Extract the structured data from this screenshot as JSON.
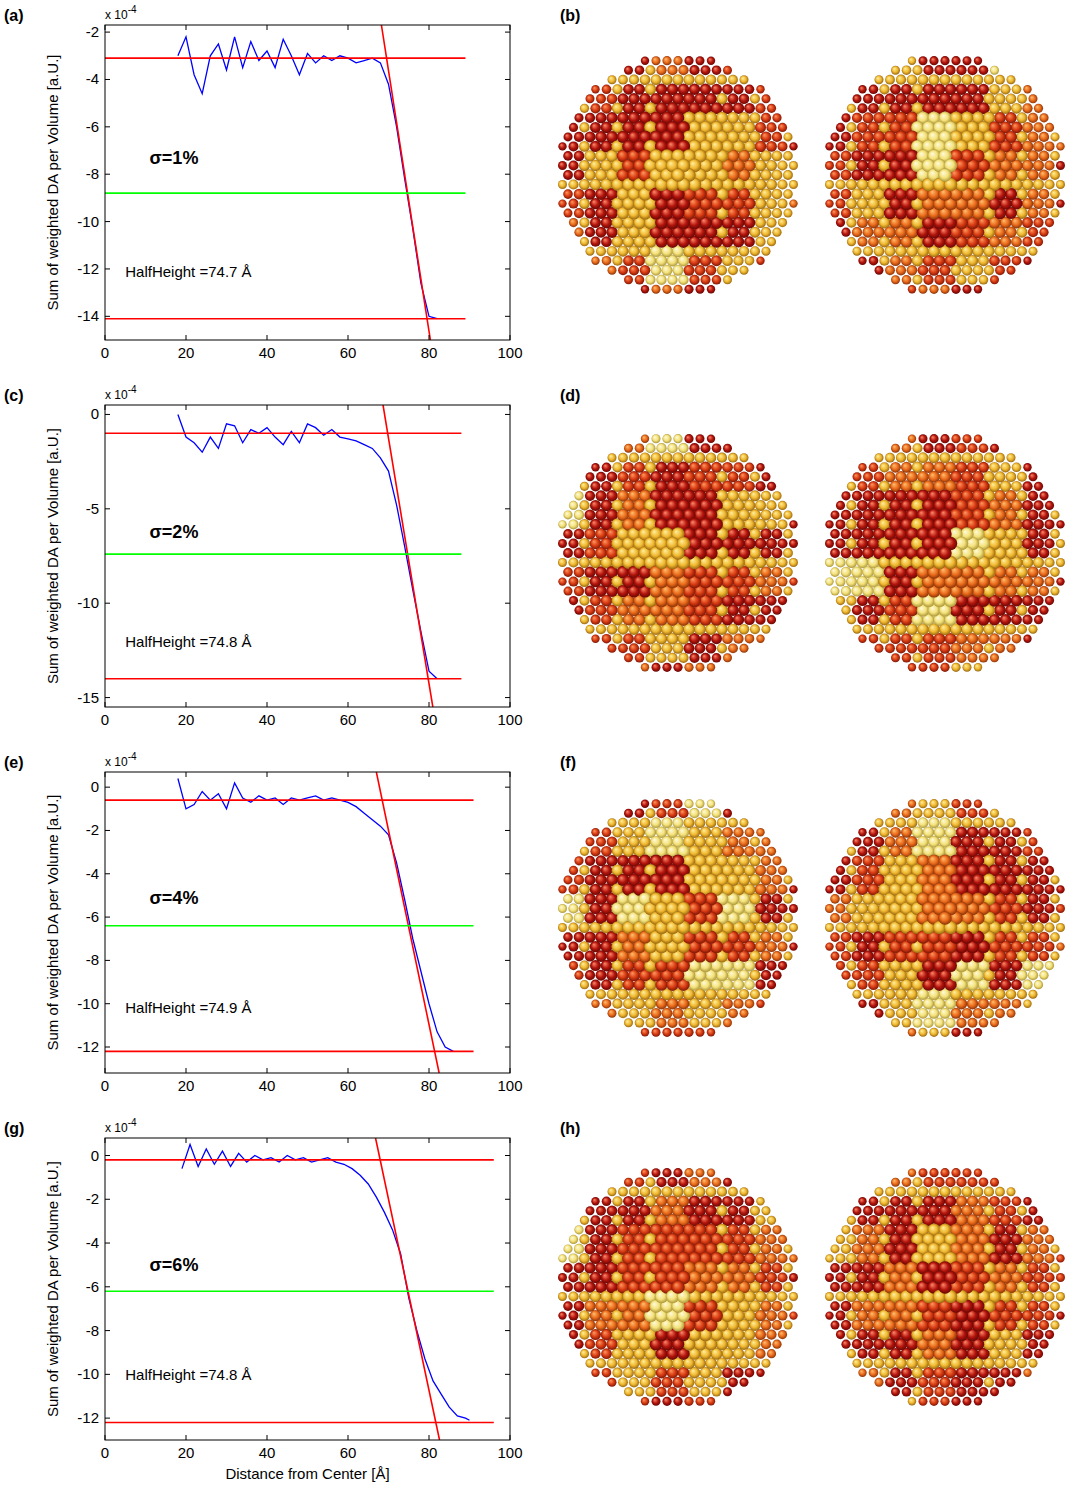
{
  "chart_data": [
    {
      "type": "line",
      "panel": "(a)",
      "annotation": "σ=1%",
      "half_height": "HalfHeight =74.7 Å",
      "y_label": "Sum of weighted DA per Volume [a.U.]",
      "y_multiplier": "x 10",
      "y_multiplier_exponent": "-4",
      "xlim": [
        0,
        100
      ],
      "xticks": [
        0,
        20,
        40,
        60,
        80,
        100
      ],
      "ylim": [
        -15,
        -1.7
      ],
      "yticks": [
        -2,
        -4,
        -6,
        -8,
        -10,
        -12,
        -14
      ],
      "grid": false,
      "series": [
        {
          "color": "#0000ff",
          "x": [
            18,
            20,
            22,
            24,
            26,
            28,
            30,
            32,
            34,
            36,
            38,
            40,
            42,
            44,
            46,
            48,
            50,
            52,
            54,
            56,
            58,
            60,
            62,
            64,
            66,
            68,
            70,
            72,
            74,
            76,
            78,
            80,
            82
          ],
          "values": [
            -3.0,
            -2.2,
            -3.8,
            -4.6,
            -3.0,
            -2.5,
            -3.6,
            -2.2,
            -3.5,
            -2.4,
            -3.2,
            -2.8,
            -3.5,
            -2.3,
            -3.0,
            -3.8,
            -2.9,
            -3.3,
            -3.0,
            -3.2,
            -3.0,
            -3.1,
            -3.3,
            -3.2,
            -3.1,
            -3.3,
            -4.2,
            -6.0,
            -8.2,
            -10.3,
            -12.6,
            -14.0,
            -14.1
          ]
        },
        {
          "color": "#ff0000",
          "x": [
            0,
            89
          ],
          "values": [
            -3.1,
            -3.1
          ]
        },
        {
          "color": "#ff0000",
          "x": [
            0,
            89
          ],
          "values": [
            -14.1,
            -14.1
          ]
        },
        {
          "color": "#ff0000",
          "x": [
            68.25,
            80.34
          ],
          "values": [
            -1.7,
            -15
          ]
        },
        {
          "color": "#00ff00",
          "x": [
            0,
            89
          ],
          "values": [
            -8.8,
            -8.8
          ]
        }
      ]
    },
    {
      "type": "line",
      "panel": "(c)",
      "annotation": "σ=2%",
      "half_height": "HalfHeight =74.8 Å",
      "y_label": "Sum of weighted DA per Volume [a.U.]",
      "y_multiplier": "x 10",
      "y_multiplier_exponent": "-4",
      "xlim": [
        0,
        100
      ],
      "xticks": [
        0,
        20,
        40,
        60,
        80,
        100
      ],
      "ylim": [
        -15.5,
        0.5
      ],
      "yticks": [
        0,
        -5,
        -10,
        -15
      ],
      "grid": false,
      "series": [
        {
          "color": "#0000ff",
          "x": [
            18,
            20,
            22,
            24,
            26,
            28,
            30,
            32,
            34,
            36,
            38,
            40,
            42,
            44,
            46,
            48,
            50,
            52,
            54,
            56,
            58,
            60,
            62,
            64,
            66,
            68,
            70,
            72,
            74,
            76,
            78,
            80,
            82
          ],
          "values": [
            0.0,
            -1.2,
            -1.5,
            -2.0,
            -1.2,
            -1.8,
            -0.5,
            -0.6,
            -1.5,
            -0.8,
            -1.0,
            -0.7,
            -1.2,
            -1.6,
            -0.9,
            -1.5,
            -0.5,
            -0.7,
            -1.1,
            -0.8,
            -1.2,
            -1.3,
            -1.4,
            -1.6,
            -1.8,
            -2.3,
            -3.0,
            -4.8,
            -7.0,
            -9.3,
            -11.5,
            -13.6,
            -14.0
          ]
        },
        {
          "color": "#ff0000",
          "x": [
            0,
            88
          ],
          "values": [
            -1.0,
            -1.0
          ]
        },
        {
          "color": "#ff0000",
          "x": [
            0,
            88
          ],
          "values": [
            -14.0,
            -14.0
          ]
        },
        {
          "color": "#ff0000",
          "x": [
            68.65,
            80.95
          ],
          "values": [
            0.5,
            -15.5
          ]
        },
        {
          "color": "#00ff00",
          "x": [
            0,
            88
          ],
          "values": [
            -7.4,
            -7.4
          ]
        }
      ]
    },
    {
      "type": "line",
      "panel": "(e)",
      "annotation": "σ=4%",
      "half_height": "HalfHeight =74.9 Å",
      "y_label": "Sum of weighted DA per Volume [a.U.]",
      "y_multiplier": "x 10",
      "y_multiplier_exponent": "-4",
      "xlim": [
        0,
        100
      ],
      "xticks": [
        0,
        20,
        40,
        60,
        80,
        100
      ],
      "ylim": [
        -13.2,
        0.7
      ],
      "yticks": [
        0,
        -2,
        -4,
        -6,
        -8,
        -10,
        -12
      ],
      "grid": false,
      "series": [
        {
          "color": "#0000ff",
          "x": [
            18,
            20,
            22,
            24,
            26,
            28,
            30,
            32,
            34,
            36,
            38,
            40,
            42,
            44,
            46,
            48,
            50,
            52,
            54,
            56,
            58,
            60,
            62,
            64,
            66,
            68,
            70,
            72,
            74,
            76,
            78,
            80,
            82,
            84,
            86
          ],
          "values": [
            0.4,
            -1.0,
            -0.8,
            -0.2,
            -0.6,
            -0.3,
            -1.0,
            0.2,
            -0.5,
            -0.7,
            -0.4,
            -0.6,
            -0.5,
            -0.8,
            -0.5,
            -0.6,
            -0.5,
            -0.4,
            -0.6,
            -0.5,
            -0.6,
            -0.7,
            -0.9,
            -1.2,
            -1.5,
            -1.8,
            -2.2,
            -3.5,
            -5.2,
            -7.0,
            -8.5,
            -10.0,
            -11.3,
            -12.0,
            -12.2
          ]
        },
        {
          "color": "#ff0000",
          "x": [
            0,
            91
          ],
          "values": [
            -0.6,
            -0.6
          ]
        },
        {
          "color": "#ff0000",
          "x": [
            0,
            91
          ],
          "values": [
            -12.2,
            -12.2
          ]
        },
        {
          "color": "#ff0000",
          "x": [
            67.0,
            82.5
          ],
          "values": [
            0.7,
            -13.2
          ]
        },
        {
          "color": "#00ff00",
          "x": [
            0,
            91
          ],
          "values": [
            -6.4,
            -6.4
          ]
        }
      ]
    },
    {
      "type": "line",
      "panel": "(g)",
      "annotation": "σ=6%",
      "half_height": "HalfHeight =74.8 Å",
      "y_label": "Sum of weighted DA per Volume [a.U.]",
      "y_multiplier": "x 10",
      "y_multiplier_exponent": "-4",
      "x_label": "Distance from Center [Å]",
      "xlim": [
        0,
        100
      ],
      "xticks": [
        0,
        20,
        40,
        60,
        80,
        100
      ],
      "ylim": [
        -13,
        0.8
      ],
      "yticks": [
        0,
        -2,
        -4,
        -6,
        -8,
        -10,
        -12
      ],
      "grid": false,
      "series": [
        {
          "color": "#0000ff",
          "x": [
            19,
            21,
            23,
            25,
            27,
            29,
            31,
            33,
            35,
            37,
            39,
            41,
            43,
            45,
            47,
            49,
            51,
            53,
            55,
            57,
            59,
            61,
            63,
            65,
            67,
            69,
            71,
            73,
            75,
            77,
            79,
            81,
            83,
            85,
            87,
            89,
            90
          ],
          "values": [
            -0.6,
            0.5,
            -0.5,
            0.3,
            -0.4,
            0.2,
            -0.5,
            0.1,
            -0.3,
            0.0,
            -0.2,
            -0.1,
            -0.3,
            0.0,
            -0.2,
            -0.1,
            -0.3,
            -0.2,
            -0.1,
            -0.3,
            -0.4,
            -0.6,
            -0.9,
            -1.3,
            -1.9,
            -2.6,
            -3.4,
            -4.5,
            -6.5,
            -8.0,
            -9.3,
            -10.3,
            -10.9,
            -11.5,
            -11.9,
            -12.0,
            -12.1
          ]
        },
        {
          "color": "#ff0000",
          "x": [
            0,
            96
          ],
          "values": [
            -0.2,
            -0.2
          ]
        },
        {
          "color": "#ff0000",
          "x": [
            0,
            96
          ],
          "values": [
            -12.2,
            -12.2
          ]
        },
        {
          "color": "#ff0000",
          "x": [
            66.8,
            82.6
          ],
          "values": [
            0.8,
            -13
          ]
        },
        {
          "color": "#00ff00",
          "x": [
            0,
            96
          ],
          "values": [
            -6.2,
            -6.2
          ]
        }
      ]
    }
  ],
  "images": [
    {
      "label": "(b)"
    },
    {
      "label": "(d)"
    },
    {
      "label": "(f)"
    },
    {
      "label": "(h)"
    }
  ]
}
